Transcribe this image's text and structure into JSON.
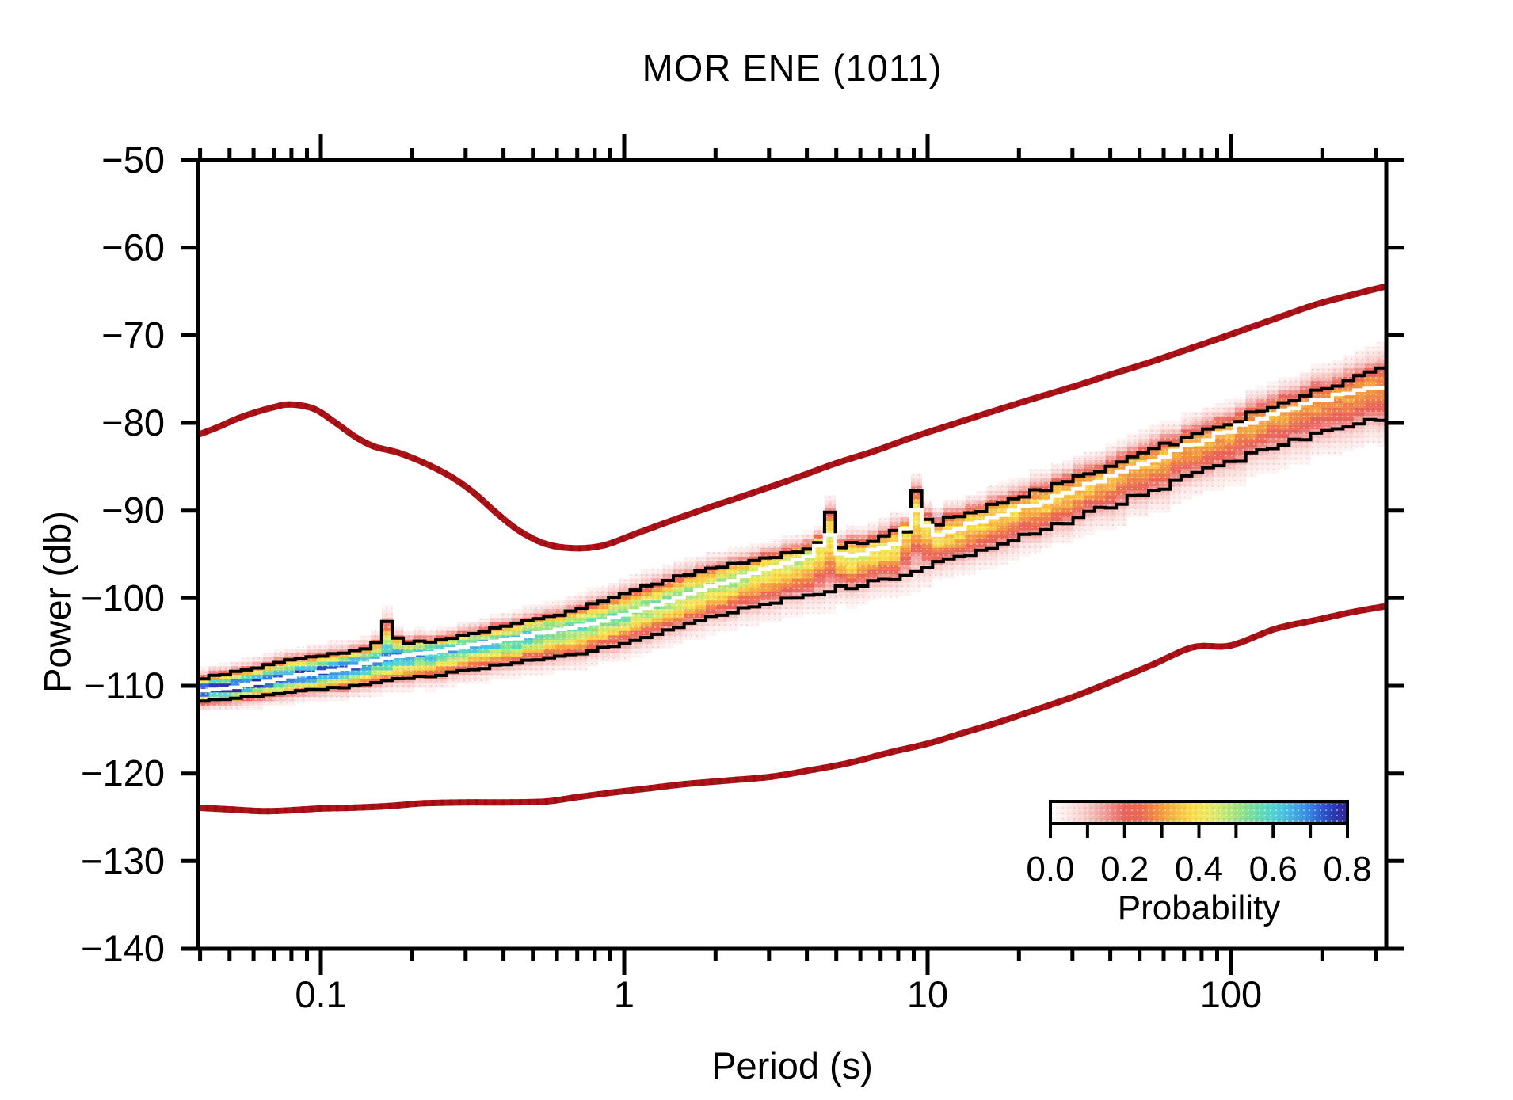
{
  "title": "MOR ENE (1011)",
  "axes": {
    "x": {
      "label": "Period (s)",
      "scale": "log",
      "range_s": [
        0.039,
        325
      ],
      "tick_labels": [
        "0.1",
        "1",
        "10",
        "100"
      ],
      "tick_values": [
        0.1,
        1,
        10,
        100
      ],
      "minor_ticks": "2-9 per decade"
    },
    "y": {
      "label": "Power (db)",
      "range_db": [
        -140,
        -50
      ],
      "tick_step": 10,
      "tick_labels": [
        "−50",
        "−60",
        "−70",
        "−80",
        "−90",
        "−100",
        "−110",
        "−120",
        "−130",
        "−140"
      ],
      "tick_values": [
        -50,
        -60,
        -70,
        -80,
        -90,
        -100,
        -110,
        -120,
        -130,
        -140
      ]
    }
  },
  "colorbar": {
    "label": "Probability",
    "min": 0.0,
    "max": 0.8,
    "tick_labels": [
      "0.0",
      "0.2",
      "0.4",
      "0.6",
      "0.8"
    ],
    "tick_values": [
      0.0,
      0.2,
      0.4,
      0.6,
      0.8
    ],
    "minor_tick_step": 0.1,
    "gradient_stops": [
      [
        0.0,
        "#ffffff"
      ],
      [
        0.06,
        "#fce8e7"
      ],
      [
        0.12,
        "#f8cbc8"
      ],
      [
        0.19,
        "#f29a94"
      ],
      [
        0.25,
        "#ec635c"
      ],
      [
        0.3,
        "#ee6a52"
      ],
      [
        0.36,
        "#f49242"
      ],
      [
        0.42,
        "#fabc42"
      ],
      [
        0.48,
        "#fbdf4b"
      ],
      [
        0.53,
        "#eeea62"
      ],
      [
        0.58,
        "#c8eb74"
      ],
      [
        0.64,
        "#99e385"
      ],
      [
        0.69,
        "#6ddfa8"
      ],
      [
        0.74,
        "#54d8cd"
      ],
      [
        0.79,
        "#48c0e5"
      ],
      [
        0.84,
        "#3f9fe9"
      ],
      [
        0.88,
        "#347ee2"
      ],
      [
        0.92,
        "#2b55cf"
      ],
      [
        0.96,
        "#2b36b0"
      ],
      [
        1.0,
        "#32219b"
      ]
    ]
  },
  "chart_data": {
    "type": "heatmap",
    "title": "MOR ENE (1011)",
    "xlabel": "Period (s)",
    "ylabel": "Power (db)",
    "xscale": "log",
    "xlim": [
      0.039,
      325
    ],
    "ylim": [
      -140,
      -50
    ],
    "legend": "colorbar 0.0-0.8 Probability, bottom-right inside plot",
    "description": "Probabilistic power spectral density (PPSD). A probability heat band (white=0 to dark blue=0.8) rises diagonally from about -110 db at 0.04 s to about -76 db at 330 s, bounded by black percentile contours with a white mode line; narrow spikes near 4.7 s and 9.2 s. Two thick dark-red curves are the Peterson high/low noise models.",
    "noise_model_color": "#b01217",
    "contour_color": "#000000",
    "mode_line_color": "#ffffff",
    "series": [
      {
        "name": "high_noise_model",
        "style": "line",
        "color": "#b01217",
        "points": [
          [
            0.039,
            -81.4
          ],
          [
            0.045,
            -80.6
          ],
          [
            0.055,
            -79.3
          ],
          [
            0.07,
            -78.2
          ],
          [
            0.08,
            -77.9
          ],
          [
            0.095,
            -78.4
          ],
          [
            0.11,
            -79.8
          ],
          [
            0.13,
            -81.6
          ],
          [
            0.15,
            -82.7
          ],
          [
            0.18,
            -83.4
          ],
          [
            0.22,
            -84.6
          ],
          [
            0.27,
            -86.2
          ],
          [
            0.32,
            -88.0
          ],
          [
            0.38,
            -90.3
          ],
          [
            0.45,
            -92.3
          ],
          [
            0.55,
            -93.8
          ],
          [
            0.68,
            -94.3
          ],
          [
            0.85,
            -94.0
          ],
          [
            1.1,
            -92.6
          ],
          [
            1.5,
            -90.9
          ],
          [
            2.0,
            -89.4
          ],
          [
            2.7,
            -87.9
          ],
          [
            3.6,
            -86.4
          ],
          [
            5.0,
            -84.6
          ],
          [
            6.7,
            -83.2
          ],
          [
            9.0,
            -81.6
          ],
          [
            12,
            -80.2
          ],
          [
            16,
            -78.8
          ],
          [
            22,
            -77.3
          ],
          [
            30,
            -75.9
          ],
          [
            40,
            -74.5
          ],
          [
            55,
            -73.0
          ],
          [
            75,
            -71.4
          ],
          [
            100,
            -69.9
          ],
          [
            140,
            -68.1
          ],
          [
            190,
            -66.5
          ],
          [
            250,
            -65.4
          ],
          [
            325,
            -64.4
          ]
        ]
      },
      {
        "name": "low_noise_model",
        "style": "line",
        "color": "#b01217",
        "points": [
          [
            0.039,
            -123.9
          ],
          [
            0.05,
            -124.1
          ],
          [
            0.065,
            -124.3
          ],
          [
            0.08,
            -124.2
          ],
          [
            0.1,
            -124.0
          ],
          [
            0.13,
            -123.9
          ],
          [
            0.17,
            -123.7
          ],
          [
            0.22,
            -123.4
          ],
          [
            0.3,
            -123.3
          ],
          [
            0.4,
            -123.3
          ],
          [
            0.55,
            -123.2
          ],
          [
            0.7,
            -122.7
          ],
          [
            0.9,
            -122.2
          ],
          [
            1.2,
            -121.7
          ],
          [
            1.6,
            -121.2
          ],
          [
            2.2,
            -120.8
          ],
          [
            3.0,
            -120.4
          ],
          [
            4.0,
            -119.7
          ],
          [
            5.5,
            -118.8
          ],
          [
            7.5,
            -117.6
          ],
          [
            10,
            -116.6
          ],
          [
            13,
            -115.4
          ],
          [
            17,
            -114.2
          ],
          [
            22,
            -112.9
          ],
          [
            30,
            -111.3
          ],
          [
            40,
            -109.6
          ],
          [
            55,
            -107.6
          ],
          [
            75,
            -105.6
          ],
          [
            100,
            -105.4
          ],
          [
            140,
            -103.5
          ],
          [
            190,
            -102.5
          ],
          [
            250,
            -101.6
          ],
          [
            325,
            -100.9
          ]
        ]
      },
      {
        "name": "pdf_upper_contour",
        "style": "step-line",
        "color": "#000000",
        "points": [
          [
            0.039,
            -109.3
          ],
          [
            0.055,
            -108.3
          ],
          [
            0.08,
            -107.0
          ],
          [
            0.12,
            -106.2
          ],
          [
            0.15,
            -105.5
          ],
          [
            0.165,
            -102.6
          ],
          [
            0.185,
            -105.2
          ],
          [
            0.25,
            -104.8
          ],
          [
            0.35,
            -103.7
          ],
          [
            0.5,
            -102.5
          ],
          [
            0.7,
            -101.4
          ],
          [
            1.0,
            -99.4
          ],
          [
            1.5,
            -97.6
          ],
          [
            2.2,
            -96.0
          ],
          [
            3.2,
            -95.0
          ],
          [
            4.3,
            -94.5
          ],
          [
            4.7,
            -89.7
          ],
          [
            5.2,
            -94.2
          ],
          [
            6.5,
            -93.5
          ],
          [
            7.8,
            -92.0
          ],
          [
            8.6,
            -92.8
          ],
          [
            9.2,
            -87.9
          ],
          [
            10.2,
            -91.9
          ],
          [
            12,
            -90.9
          ],
          [
            15,
            -89.8
          ],
          [
            20,
            -88.4
          ],
          [
            28,
            -86.7
          ],
          [
            40,
            -84.9
          ],
          [
            55,
            -83.2
          ],
          [
            75,
            -81.4
          ],
          [
            100,
            -79.9
          ],
          [
            140,
            -78.1
          ],
          [
            190,
            -76.4
          ],
          [
            250,
            -74.9
          ],
          [
            325,
            -73.8
          ]
        ]
      },
      {
        "name": "pdf_lower_contour",
        "style": "step-line",
        "color": "#000000",
        "points": [
          [
            0.039,
            -111.8
          ],
          [
            0.06,
            -111.3
          ],
          [
            0.08,
            -110.7
          ],
          [
            0.12,
            -110.2
          ],
          [
            0.17,
            -109.3
          ],
          [
            0.25,
            -108.7
          ],
          [
            0.35,
            -107.9
          ],
          [
            0.5,
            -107.1
          ],
          [
            0.7,
            -106.4
          ],
          [
            1.0,
            -105.1
          ],
          [
            1.5,
            -103.4
          ],
          [
            2.2,
            -101.6
          ],
          [
            3.2,
            -100.3
          ],
          [
            4.5,
            -99.3
          ],
          [
            5.5,
            -98.7
          ],
          [
            7,
            -97.9
          ],
          [
            8.5,
            -97.5
          ],
          [
            10,
            -96.4
          ],
          [
            12,
            -95.5
          ],
          [
            15,
            -94.4
          ],
          [
            20,
            -93.0
          ],
          [
            28,
            -91.4
          ],
          [
            40,
            -89.5
          ],
          [
            55,
            -87.8
          ],
          [
            75,
            -86.0
          ],
          [
            100,
            -84.4
          ],
          [
            140,
            -82.7
          ],
          [
            190,
            -81.2
          ],
          [
            250,
            -80.0
          ],
          [
            325,
            -79.4
          ]
        ]
      },
      {
        "name": "pdf_mode",
        "style": "step-line",
        "color": "#ffffff",
        "points": [
          [
            0.039,
            -110.6
          ],
          [
            0.055,
            -110.1
          ],
          [
            0.08,
            -108.9
          ],
          [
            0.12,
            -108.1
          ],
          [
            0.165,
            -106.8
          ],
          [
            0.22,
            -106.3
          ],
          [
            0.3,
            -105.5
          ],
          [
            0.42,
            -104.7
          ],
          [
            0.6,
            -103.6
          ],
          [
            0.8,
            -102.8
          ],
          [
            1.0,
            -101.9
          ],
          [
            1.4,
            -100.4
          ],
          [
            2.0,
            -98.4
          ],
          [
            2.8,
            -97.0
          ],
          [
            4.0,
            -95.5
          ],
          [
            4.7,
            -92.6
          ],
          [
            5.3,
            -95.3
          ],
          [
            6.5,
            -94.6
          ],
          [
            8.0,
            -93.8
          ],
          [
            9.2,
            -89.9
          ],
          [
            10.5,
            -93.0
          ],
          [
            12,
            -92.3
          ],
          [
            15,
            -91.2
          ],
          [
            20,
            -89.9
          ],
          [
            27,
            -88.3
          ],
          [
            38,
            -86.5
          ],
          [
            52,
            -84.7
          ],
          [
            72,
            -82.7
          ],
          [
            100,
            -80.8
          ],
          [
            140,
            -79.0
          ],
          [
            200,
            -77.3
          ],
          [
            260,
            -76.4
          ],
          [
            325,
            -76.0
          ]
        ]
      }
    ],
    "pdf_envelope": {
      "max_probability_vs_period": [
        [
          0.039,
          0.78
        ],
        [
          0.1,
          0.74
        ],
        [
          0.3,
          0.62
        ],
        [
          1,
          0.53
        ],
        [
          3,
          0.46
        ],
        [
          10,
          0.4
        ],
        [
          40,
          0.35
        ],
        [
          150,
          0.31
        ],
        [
          325,
          0.29
        ]
      ],
      "halo_db_vs_period": [
        [
          0.039,
          0.9
        ],
        [
          0.3,
          1.2
        ],
        [
          1,
          1.5
        ],
        [
          10,
          2.0
        ],
        [
          60,
          2.6
        ],
        [
          325,
          3.1
        ]
      ],
      "db_bin": 0.5,
      "bins_per_decade": 28
    }
  }
}
